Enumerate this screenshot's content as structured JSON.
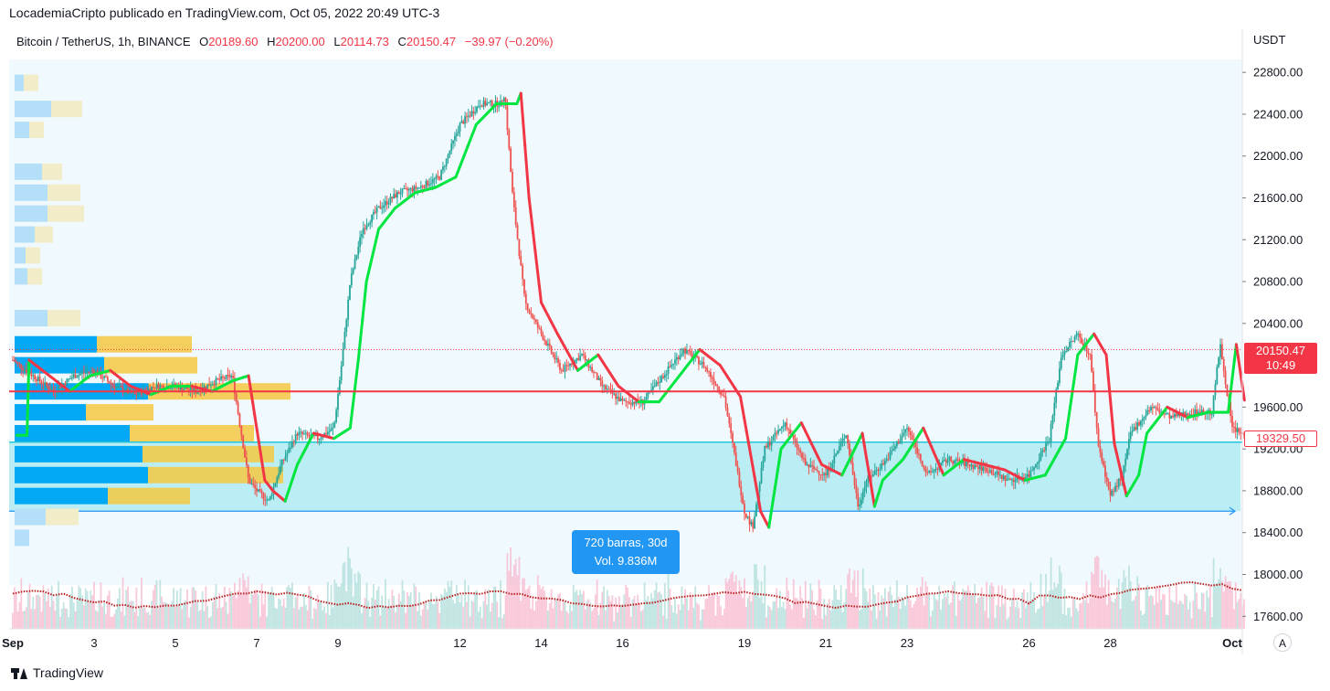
{
  "header": {
    "attribution": "LocademiaCripto publicado en TradingView.com, Oct 05, 2022 20:49 UTC-3"
  },
  "legend": {
    "symbol": "Bitcoin / TetherUS, 1h, BINANCE",
    "open_key": "O",
    "open": "20189.60",
    "high_key": "H",
    "high": "20200.00",
    "low_key": "L",
    "low": "20114.73",
    "close_key": "C",
    "close": "20150.47",
    "change": "−39.97 (−0.20%)"
  },
  "price_labels": {
    "last": "20150.47",
    "countdown": "10:49",
    "low_level": "19329.50"
  },
  "tooltip": {
    "bars": "720 barras, 30d",
    "volume": "Vol. 9.836M"
  },
  "footer": {
    "brand": "TradingView"
  },
  "auto_button": "A",
  "colors": {
    "up": "#26a69a",
    "down": "#ef5350",
    "ma_up": "#00e640",
    "ma_down": "#f23645",
    "zone": "#b2ebf2",
    "level": "#f23645",
    "vp_up": "#03a9f4",
    "vp_down": "#f5c842"
  },
  "chart_data": {
    "type": "candlestick",
    "y_unit": "USDT",
    "y_ticks": [
      22800,
      22400,
      22000,
      21600,
      21200,
      20800,
      20400,
      19600,
      19200,
      18800,
      18400,
      18000,
      17600
    ],
    "y_range": [
      17480,
      22950
    ],
    "x_ticks": [
      {
        "label": "Sep",
        "day": 1
      },
      {
        "label": "3",
        "day": 3
      },
      {
        "label": "5",
        "day": 5
      },
      {
        "label": "7",
        "day": 7
      },
      {
        "label": "9",
        "day": 9
      },
      {
        "label": "12",
        "day": 12
      },
      {
        "label": "14",
        "day": 14
      },
      {
        "label": "16",
        "day": 16
      },
      {
        "label": "19",
        "day": 19
      },
      {
        "label": "21",
        "day": 21
      },
      {
        "label": "23",
        "day": 23
      },
      {
        "label": "26",
        "day": 26
      },
      {
        "label": "28",
        "day": 28
      },
      {
        "label": "Oct",
        "day": 31
      }
    ],
    "price_path": [
      [
        1,
        20050
      ],
      [
        1.5,
        19900
      ],
      [
        2,
        19750
      ],
      [
        2.5,
        19900
      ],
      [
        3,
        19950
      ],
      [
        3.5,
        19800
      ],
      [
        4,
        19720
      ],
      [
        4.5,
        19800
      ],
      [
        5,
        19800
      ],
      [
        5.5,
        19750
      ],
      [
        6,
        19850
      ],
      [
        6.4,
        19900
      ],
      [
        6.8,
        18900
      ],
      [
        7,
        18800
      ],
      [
        7.3,
        18700
      ],
      [
        7.6,
        19050
      ],
      [
        8,
        19350
      ],
      [
        8.5,
        19300
      ],
      [
        8.9,
        19400
      ],
      [
        9.1,
        20050
      ],
      [
        9.3,
        20800
      ],
      [
        9.6,
        21300
      ],
      [
        10,
        21500
      ],
      [
        10.5,
        21650
      ],
      [
        11,
        21700
      ],
      [
        11.5,
        21800
      ],
      [
        12,
        22300
      ],
      [
        12.5,
        22500
      ],
      [
        13,
        22500
      ],
      [
        13.1,
        22600
      ],
      [
        13.3,
        21600
      ],
      [
        13.6,
        20600
      ],
      [
        14,
        20300
      ],
      [
        14.5,
        19950
      ],
      [
        15,
        20100
      ],
      [
        15.5,
        19800
      ],
      [
        16,
        19650
      ],
      [
        16.5,
        19650
      ],
      [
        17,
        19900
      ],
      [
        17.5,
        20150
      ],
      [
        18,
        20000
      ],
      [
        18.5,
        19700
      ],
      [
        19,
        18600
      ],
      [
        19.2,
        18450
      ],
      [
        19.5,
        19200
      ],
      [
        20,
        19450
      ],
      [
        20.5,
        19050
      ],
      [
        21,
        18950
      ],
      [
        21.5,
        19350
      ],
      [
        21.8,
        18650
      ],
      [
        22,
        18900
      ],
      [
        22.5,
        19100
      ],
      [
        23,
        19400
      ],
      [
        23.5,
        18950
      ],
      [
        24,
        19100
      ],
      [
        25,
        19000
      ],
      [
        25.5,
        18900
      ],
      [
        26,
        18950
      ],
      [
        26.5,
        19300
      ],
      [
        26.8,
        20100
      ],
      [
        27.2,
        20300
      ],
      [
        27.5,
        20100
      ],
      [
        27.7,
        19250
      ],
      [
        28,
        18750
      ],
      [
        28.3,
        18950
      ],
      [
        28.5,
        19350
      ],
      [
        29,
        19600
      ],
      [
        29.5,
        19500
      ],
      [
        30,
        19550
      ],
      [
        30.5,
        19550
      ],
      [
        30.7,
        20200
      ],
      [
        31,
        19400
      ],
      [
        31.3,
        19330
      ]
    ],
    "ma_path": [
      [
        1,
        20050
      ],
      [
        1.5,
        19900
      ],
      [
        2,
        19750
      ],
      [
        2.5,
        19900
      ],
      [
        3,
        19950
      ],
      [
        3.5,
        19800
      ],
      [
        4,
        19720
      ],
      [
        4.5,
        19800
      ],
      [
        5,
        19800
      ],
      [
        5.5,
        19750
      ],
      [
        6,
        19850
      ],
      [
        6.4,
        19900
      ],
      [
        6.8,
        18900
      ],
      [
        7,
        18800
      ],
      [
        7.3,
        18700
      ],
      [
        7.6,
        19050
      ],
      [
        8,
        19350
      ],
      [
        8.5,
        19300
      ],
      [
        8.9,
        19400
      ],
      [
        9.1,
        20050
      ],
      [
        9.3,
        20800
      ],
      [
        9.6,
        21300
      ],
      [
        10,
        21500
      ],
      [
        10.5,
        21650
      ],
      [
        11,
        21700
      ],
      [
        11.5,
        21800
      ],
      [
        12,
        22300
      ],
      [
        12.5,
        22500
      ],
      [
        13,
        22500
      ],
      [
        13.1,
        22600
      ],
      [
        13.3,
        21600
      ],
      [
        13.6,
        20600
      ],
      [
        14,
        20300
      ],
      [
        14.5,
        19950
      ],
      [
        15,
        20100
      ],
      [
        15.5,
        19800
      ],
      [
        16,
        19650
      ],
      [
        16.5,
        19650
      ],
      [
        17,
        19900
      ],
      [
        17.5,
        20150
      ],
      [
        18,
        20000
      ],
      [
        18.5,
        19700
      ],
      [
        19,
        18600
      ],
      [
        19.2,
        18450
      ],
      [
        19.5,
        19200
      ],
      [
        20,
        19450
      ],
      [
        20.5,
        19050
      ],
      [
        21,
        18950
      ],
      [
        21.5,
        19350
      ],
      [
        21.8,
        18650
      ],
      [
        22,
        18900
      ],
      [
        22.5,
        19100
      ],
      [
        23,
        19400
      ],
      [
        23.5,
        18950
      ],
      [
        24,
        19100
      ],
      [
        25,
        19000
      ],
      [
        25.5,
        18900
      ],
      [
        26,
        18950
      ],
      [
        26.5,
        19300
      ],
      [
        26.8,
        20100
      ],
      [
        27.2,
        20300
      ],
      [
        27.5,
        20100
      ],
      [
        27.7,
        19250
      ],
      [
        28,
        18750
      ],
      [
        28.3,
        18950
      ],
      [
        28.5,
        19350
      ],
      [
        29,
        19600
      ],
      [
        29.5,
        19500
      ],
      [
        30,
        19550
      ],
      [
        30.5,
        19550
      ],
      [
        30.7,
        20200
      ],
      [
        31,
        19400
      ],
      [
        31.3,
        19330
      ]
    ],
    "horizontal_level": 19750,
    "last_price_level": 20150.47,
    "zone": {
      "top": 19265,
      "bottom": 18605,
      "from_day": 1,
      "to_day": 31.2
    },
    "volume_profile": [
      {
        "price": 22700,
        "up": 0.05,
        "down": 0.08
      },
      {
        "price": 22450,
        "up": 0.2,
        "down": 0.17
      },
      {
        "price": 22250,
        "up": 0.08,
        "down": 0.08
      },
      {
        "price": 21850,
        "up": 0.15,
        "down": 0.11
      },
      {
        "price": 21650,
        "up": 0.18,
        "down": 0.18
      },
      {
        "price": 21450,
        "up": 0.18,
        "down": 0.2
      },
      {
        "price": 21250,
        "up": 0.11,
        "down": 0.1
      },
      {
        "price": 21050,
        "up": 0.06,
        "down": 0.08
      },
      {
        "price": 20850,
        "up": 0.07,
        "down": 0.08
      },
      {
        "price": 20450,
        "up": 0.18,
        "down": 0.18
      },
      {
        "price": 20200,
        "up": 0.45,
        "down": 0.52
      },
      {
        "price": 20000,
        "up": 0.49,
        "down": 0.51
      },
      {
        "price": 19750,
        "up": 0.73,
        "down": 0.78
      },
      {
        "price": 19550,
        "up": 0.39,
        "down": 0.37
      },
      {
        "price": 19350,
        "up": 0.63,
        "down": 0.68
      },
      {
        "price": 19150,
        "up": 0.7,
        "down": 0.72
      },
      {
        "price": 18950,
        "up": 0.73,
        "down": 0.74
      },
      {
        "price": 18750,
        "up": 0.51,
        "down": 0.45
      },
      {
        "price": 18550,
        "up": 0.17,
        "down": 0.18
      },
      {
        "price": 18350,
        "up": 0.08,
        "down": 0.0
      }
    ]
  }
}
